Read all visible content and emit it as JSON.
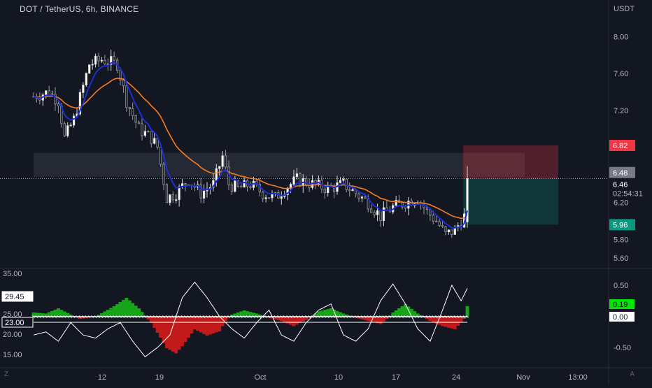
{
  "header": {
    "title": "DOT / TetherUS, 6h, BINANCE"
  },
  "price_axis": {
    "currency": "USDT"
  },
  "corner": {
    "left_glyph": "Z",
    "right_glyph": "A"
  },
  "chart_data": [
    {
      "type": "candlestick",
      "title": "DOT / TetherUS, 6h, BINANCE",
      "ylabel": "USDT",
      "ylim": [
        5.5,
        8.2
      ],
      "y_ticks": [
        8.0,
        7.6,
        7.2,
        6.2,
        5.8,
        5.6
      ],
      "x_ticks": [
        "12",
        "19",
        "Oct",
        "10",
        "17",
        "24",
        "Nov",
        "13:00"
      ],
      "grid": false,
      "close_path": [
        [
          0,
          7.35
        ],
        [
          5,
          7.4
        ],
        [
          8,
          7.3
        ],
        [
          10,
          6.9
        ],
        [
          13,
          7.1
        ],
        [
          18,
          7.7
        ],
        [
          22,
          7.75
        ],
        [
          27,
          7.7
        ],
        [
          30,
          7.3
        ],
        [
          34,
          7.0
        ],
        [
          38,
          6.9
        ],
        [
          40,
          6.8
        ],
        [
          43,
          6.25
        ],
        [
          46,
          6.3
        ],
        [
          50,
          6.45
        ],
        [
          54,
          6.3
        ],
        [
          58,
          6.4
        ],
        [
          61,
          6.7
        ],
        [
          63,
          6.4
        ],
        [
          66,
          6.35
        ],
        [
          70,
          6.4
        ],
        [
          74,
          6.3
        ],
        [
          78,
          6.25
        ],
        [
          81,
          6.35
        ],
        [
          85,
          6.45
        ],
        [
          90,
          6.4
        ],
        [
          95,
          6.35
        ],
        [
          100,
          6.4
        ],
        [
          104,
          6.3
        ],
        [
          108,
          6.2
        ],
        [
          112,
          6.05
        ],
        [
          116,
          6.15
        ],
        [
          120,
          6.2
        ],
        [
          124,
          6.25
        ],
        [
          127,
          6.1
        ],
        [
          130,
          6.0
        ],
        [
          133,
          5.85
        ],
        [
          136,
          5.9
        ],
        [
          139,
          6.05
        ],
        [
          140,
          6.46
        ]
      ],
      "ema_fast": "blue",
      "ema_slow": "orange",
      "zones": {
        "stop_zone": [
          6.46,
          6.82
        ],
        "target_zone": [
          5.96,
          6.46
        ],
        "resistance_band": [
          6.48,
          6.74
        ]
      },
      "price_labels": [
        {
          "value": "6.82",
          "color": "#f23645"
        },
        {
          "value": "6.48",
          "color": "#787b86"
        },
        {
          "value": "6.46",
          "color": "#131722"
        },
        {
          "value": "5.96",
          "color": "#089981"
        }
      ],
      "countdown": "02:54:31",
      "current_price": 6.46
    },
    {
      "type": "oscillator",
      "left_ticks": [
        "35.00",
        "25.00",
        "20.00",
        "15.00"
      ],
      "right_ticks": [
        "0.50",
        "-0.50"
      ],
      "left_labels": [
        {
          "value": "29.45",
          "style": "light"
        },
        {
          "value": "23.00",
          "style": "dark"
        }
      ],
      "right_labels": [
        {
          "value": "0.19",
          "color": "#00e600"
        },
        {
          "value": "0.00",
          "color": "#ffffff"
        }
      ],
      "zero_line": 23.0,
      "area_series": {
        "positive_color": "#18a418",
        "negative_color": "#c21a1a",
        "values": [
          [
            0,
            4
          ],
          [
            4,
            3
          ],
          [
            8,
            8
          ],
          [
            12,
            2
          ],
          [
            15,
            -2
          ],
          [
            20,
            0
          ],
          [
            26,
            10
          ],
          [
            30,
            18
          ],
          [
            34,
            8
          ],
          [
            38,
            -6
          ],
          [
            41,
            -20
          ],
          [
            43,
            -30
          ],
          [
            46,
            -35
          ],
          [
            48,
            -28
          ],
          [
            52,
            -12
          ],
          [
            56,
            -18
          ],
          [
            60,
            -14
          ],
          [
            62,
            -4
          ],
          [
            64,
            2
          ],
          [
            68,
            6
          ],
          [
            72,
            3
          ],
          [
            76,
            -1
          ],
          [
            80,
            -4
          ],
          [
            84,
            -9
          ],
          [
            88,
            -3
          ],
          [
            92,
            5
          ],
          [
            96,
            8
          ],
          [
            100,
            3
          ],
          [
            104,
            -1
          ],
          [
            108,
            -4
          ],
          [
            112,
            -7
          ],
          [
            114,
            -2
          ],
          [
            116,
            4
          ],
          [
            120,
            12
          ],
          [
            124,
            3
          ],
          [
            128,
            -4
          ],
          [
            132,
            -9
          ],
          [
            136,
            -12
          ],
          [
            139,
            -2
          ],
          [
            140,
            10
          ]
        ]
      },
      "line_series": {
        "color": "#ffffff",
        "values": [
          [
            0,
            -0.3
          ],
          [
            4,
            -0.25
          ],
          [
            8,
            -0.4
          ],
          [
            12,
            -0.1
          ],
          [
            16,
            -0.3
          ],
          [
            20,
            -0.35
          ],
          [
            24,
            -0.2
          ],
          [
            28,
            -0.1
          ],
          [
            32,
            -0.4
          ],
          [
            36,
            -0.65
          ],
          [
            40,
            -0.5
          ],
          [
            44,
            -0.3
          ],
          [
            48,
            0.3
          ],
          [
            52,
            0.55
          ],
          [
            56,
            0.3
          ],
          [
            60,
            0.0
          ],
          [
            64,
            -0.2
          ],
          [
            68,
            -0.35
          ],
          [
            72,
            -0.1
          ],
          [
            76,
            0.1
          ],
          [
            80,
            -0.3
          ],
          [
            84,
            -0.4
          ],
          [
            88,
            -0.1
          ],
          [
            92,
            0.1
          ],
          [
            96,
            0.2
          ],
          [
            100,
            -0.3
          ],
          [
            104,
            -0.4
          ],
          [
            108,
            -0.2
          ],
          [
            112,
            0.25
          ],
          [
            116,
            0.52
          ],
          [
            120,
            0.2
          ],
          [
            124,
            -0.2
          ],
          [
            128,
            -0.4
          ],
          [
            132,
            0.1
          ],
          [
            135,
            0.5
          ],
          [
            138,
            0.25
          ],
          [
            140,
            0.45
          ]
        ]
      }
    }
  ]
}
